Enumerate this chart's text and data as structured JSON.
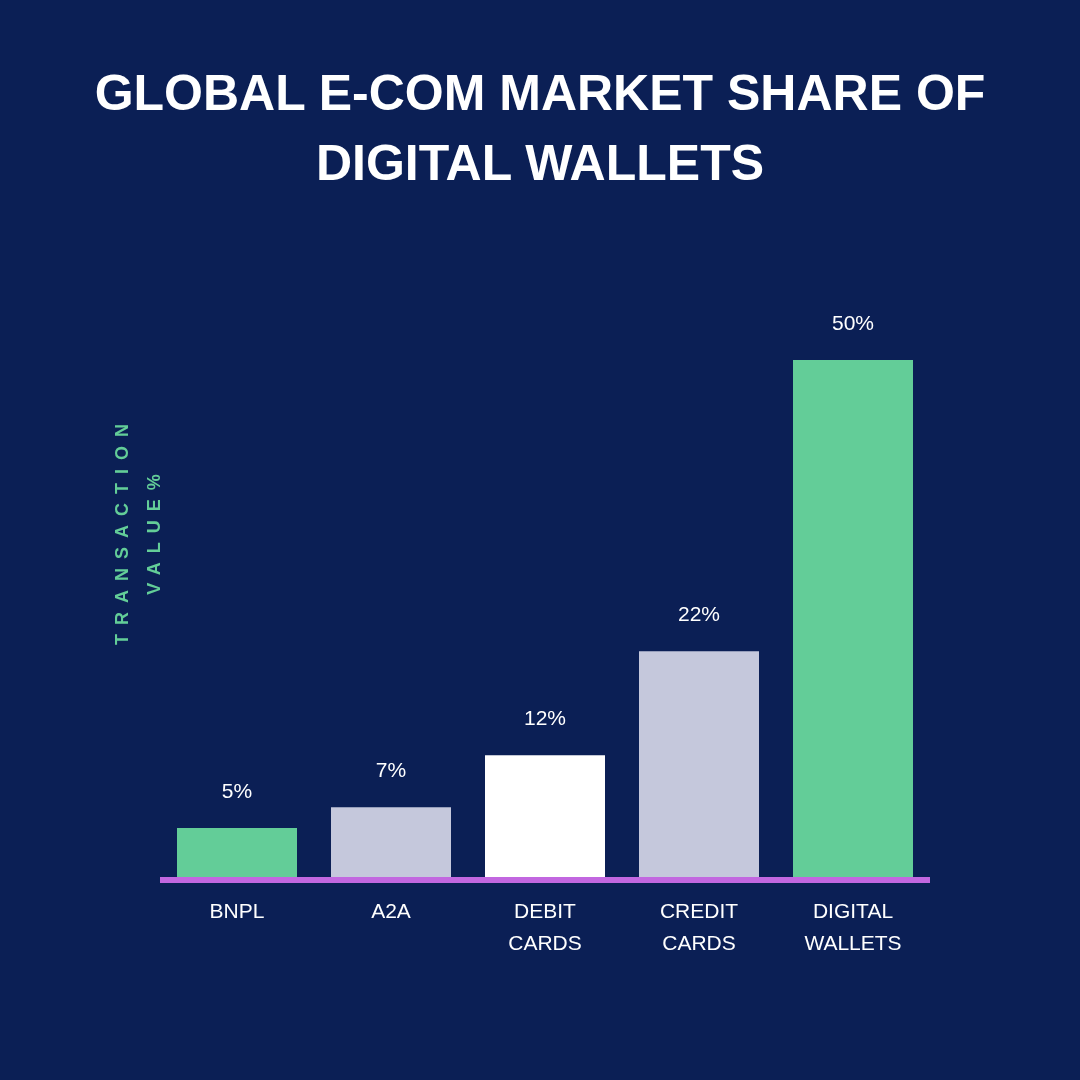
{
  "chart_data": {
    "type": "bar",
    "title": "GLOBAL E-COM MARKET SHARE OF DIGITAL WALLETS",
    "ylabel": "TRANSACTION VALUE%",
    "categories": [
      "BNPL",
      "A2A",
      "DEBIT CARDS",
      "CREDIT CARDS",
      "DIGITAL WALLETS"
    ],
    "values": [
      5,
      7,
      12,
      22,
      50
    ],
    "colors": [
      "#63cd98",
      "#c5c8dc",
      "#ffffff",
      "#c5c8dc",
      "#63cd98"
    ],
    "value_labels": [
      "5%",
      "7%",
      "12%",
      "22%",
      "50%"
    ],
    "grid": false,
    "legend": false
  }
}
